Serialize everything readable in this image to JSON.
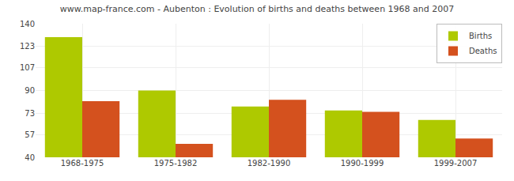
{
  "chart_data": {
    "type": "bar",
    "title": "www.map-france.com - Aubenton : Evolution of births and deaths between 1968 and 2007",
    "categories": [
      "1968-1975",
      "1975-1982",
      "1982-1990",
      "1990-1999",
      "1999-2007"
    ],
    "series": [
      {
        "name": "Births",
        "color": "#aec900",
        "values": [
          130,
          90,
          78,
          75,
          68
        ]
      },
      {
        "name": "Deaths",
        "color": "#d4511e",
        "values": [
          82,
          50,
          83,
          74,
          54
        ]
      }
    ],
    "ylim": [
      40,
      140
    ],
    "yticks": [
      40,
      57,
      73,
      90,
      107,
      123,
      140
    ],
    "grid": true,
    "legend": "upper right"
  }
}
